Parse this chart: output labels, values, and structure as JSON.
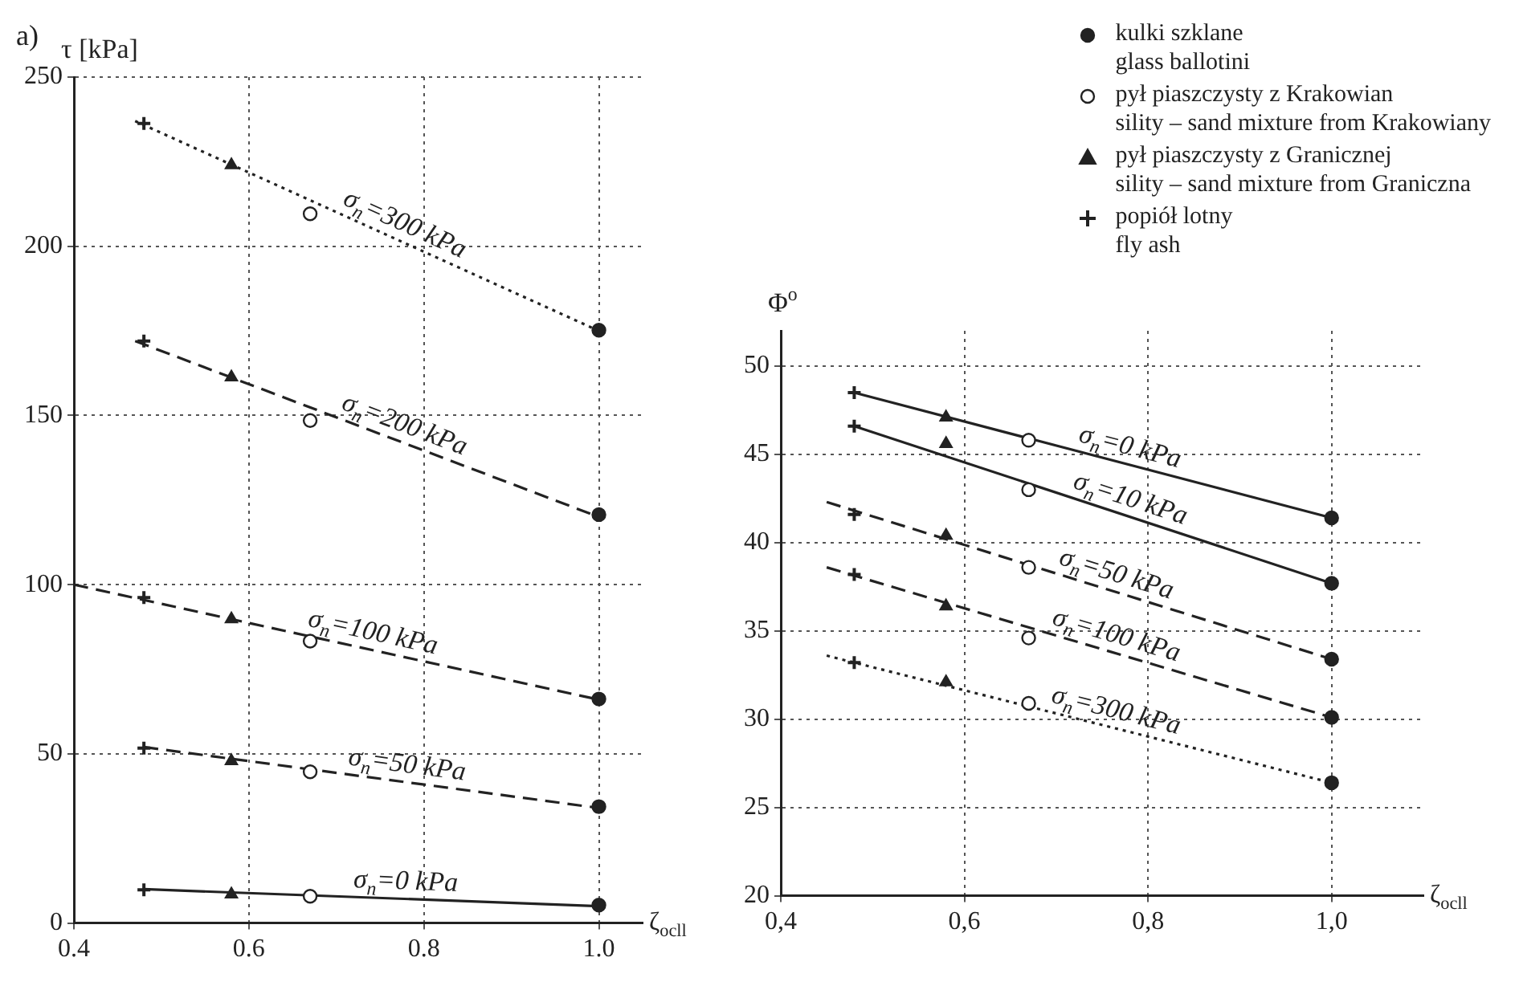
{
  "chart_data": [
    {
      "type": "scatter",
      "title": "a)",
      "xlabel": "ζ$_{ocll}$",
      "ylabel": "τ [kPa]",
      "xlim": [
        0.4,
        1.05
      ],
      "xticks": [
        0.4,
        0.6,
        0.8,
        {
          "value": 1,
          "label": "1.0"
        }
      ],
      "ylim": [
        0,
        250
      ],
      "yticks": [
        0,
        50,
        100,
        150,
        200,
        250
      ],
      "grid": true,
      "legend": false,
      "series": [
        {
          "marker": "circle",
          "color": "#222222",
          "x": [
            1,
            1,
            1,
            1,
            1
          ],
          "values": [
            175.2,
            120.7,
            66.2,
            34.4,
            5.3
          ]
        },
        {
          "marker": "circle",
          "color": "#ffffff",
          "x": [
            0.67,
            0.67,
            0.67,
            0.67,
            0.67
          ],
          "values": [
            209.6,
            148.5,
            83.3,
            44.7,
            7.9
          ]
        },
        {
          "marker": "triangle",
          "color": "#222222",
          "x": [
            0.58,
            0.58,
            0.58,
            0.58,
            0.58
          ],
          "values": [
            224,
            161.3,
            89.8,
            47.9,
            8.5
          ]
        },
        {
          "marker": "cross",
          "color": "#222222",
          "x": [
            0.48,
            0.48,
            0.48,
            0.48,
            0.48
          ],
          "values": [
            236.3,
            172,
            96.2,
            51.7,
            9.8
          ]
        },
        {
          "type": "line",
          "name": "σ$_{n}$=300 kPa",
          "color": "#222222",
          "marker": "none",
          "line_style": "dotted",
          "x": [
            0.47,
            1
          ],
          "values": [
            237,
            175
          ]
        },
        {
          "type": "line",
          "name": "σ$_{n}$=200 kPa",
          "color": "#222222",
          "marker": "none",
          "line_style": "dashed",
          "x": [
            0.47,
            1
          ],
          "values": [
            172,
            120
          ]
        },
        {
          "type": "line",
          "name": "σ$_{n}$=100 kPa",
          "color": "#222222",
          "marker": "none",
          "line_style": "dashed",
          "x": [
            0.4,
            1
          ],
          "values": [
            100,
            66
          ]
        },
        {
          "type": "line",
          "name": "σ$_{n}$=50 kPa",
          "color": "#222222",
          "marker": "none",
          "line_style": "dashed",
          "x": [
            0.48,
            1
          ],
          "values": [
            52,
            34
          ]
        },
        {
          "type": "line",
          "name": "σ$_{n}$=0 kPa",
          "color": "#222222",
          "marker": "none",
          "line_style": "solid",
          "x": [
            0.48,
            1
          ],
          "values": [
            10,
            5
          ]
        }
      ]
    },
    {
      "type": "scatter",
      "xlabel": "ζ$_{ocll}$",
      "ylabel": "Φ$^{o}$",
      "xlim": [
        0.4,
        1.1
      ],
      "xticks": [
        {
          "value": 0.4,
          "label": "0,4"
        },
        {
          "value": 0.6,
          "label": "0,6"
        },
        {
          "value": 0.8,
          "label": "0,8"
        },
        {
          "value": 1,
          "label": "1,0"
        }
      ],
      "ylim": [
        20,
        52
      ],
      "yticks": [
        20,
        25,
        30,
        35,
        40,
        45,
        50
      ],
      "grid": true,
      "legend": "top",
      "series": [
        {
          "name": "kulki szklane\nglass ballotini",
          "marker": "circle",
          "color": "#222222",
          "x": [
            1,
            1,
            1,
            1,
            1
          ],
          "values": [
            41.4,
            37.7,
            33.4,
            30.1,
            26.4
          ]
        },
        {
          "name": "pył piaszczysty z Krakowian\nsility – sand mixture from Krakowiany",
          "marker": "circle",
          "color": "#ffffff",
          "x": [
            0.67,
            0.67,
            0.67,
            0.67,
            0.67
          ],
          "values": [
            45.8,
            43,
            38.6,
            34.6,
            30.9
          ]
        },
        {
          "name": "pył piaszczysty z Granicznej\nsility – sand mixture from Graniczna",
          "marker": "triangle",
          "color": "#222222",
          "x": [
            0.58,
            0.58,
            0.58,
            0.58,
            0.58
          ],
          "values": [
            47.1,
            45.6,
            40.4,
            36.4,
            32.1
          ]
        },
        {
          "name": "popiół lotny\nfly ash",
          "marker": "cross",
          "color": "#222222",
          "x": [
            0.48,
            0.48,
            0.48,
            0.48,
            0.48
          ],
          "values": [
            48.5,
            46.6,
            41.6,
            38.2,
            33.2
          ]
        },
        {
          "type": "line",
          "name": "σ$_{n}$=0 kPa",
          "color": "#222222",
          "marker": "none",
          "line_style": "solid",
          "x": [
            0.48,
            1
          ],
          "values": [
            48.5,
            41.4
          ]
        },
        {
          "type": "line",
          "name": "σ$_{n}$=10 kPa",
          "color": "#222222",
          "marker": "none",
          "line_style": "solid",
          "x": [
            0.48,
            1
          ],
          "values": [
            46.6,
            37.7
          ]
        },
        {
          "type": "line",
          "name": "σ$_{n}$=50 kPa",
          "color": "#222222",
          "marker": "none",
          "line_style": "dashed",
          "x": [
            0.45,
            1
          ],
          "values": [
            42.3,
            33.4
          ]
        },
        {
          "type": "line",
          "name": "σ$_{n}$=100 kPa",
          "color": "#222222",
          "marker": "none",
          "line_style": "dashed",
          "x": [
            0.45,
            1
          ],
          "values": [
            38.6,
            30.1
          ]
        },
        {
          "type": "line",
          "name": "σ$_{n}$=300 kPa",
          "color": "#222222",
          "marker": "none",
          "line_style": "dotted",
          "x": [
            0.45,
            1
          ],
          "values": [
            33.6,
            26.4
          ]
        }
      ]
    }
  ]
}
